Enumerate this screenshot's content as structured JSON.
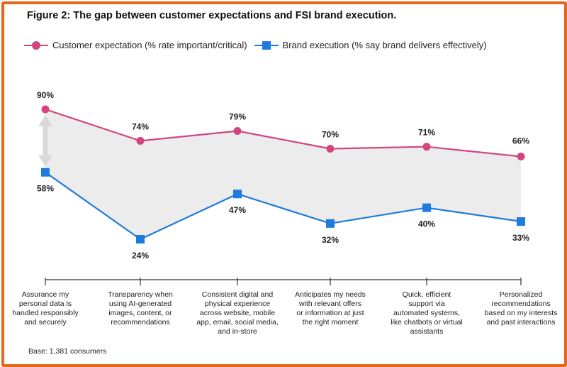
{
  "chart_data": {
    "type": "line",
    "title": "Figure 2: The gap between customer expectations and FSI brand execution.",
    "categories": [
      "Assurance my personal data is handled responsibly and securely",
      "Transparency when using AI-generated images, content, or recommendations",
      "Consistent digital and physical experience across website, mobile app, email, social media, and in-store",
      "Anticipates my needs with relevant offers or information at just the right moment",
      "Quick, efficient support via automated systems, like chatbots or virtual assistants",
      "Personalized recommendations based on my interests and past interactions"
    ],
    "category_lines": [
      [
        "Assurance my",
        "personal data is",
        "handled responsibly",
        "and securely"
      ],
      [
        "Transparency when",
        "using AI-generated",
        "images, content, or",
        "recommendations"
      ],
      [
        "Consistent digital and",
        "physical experience",
        "across website, mobile",
        "app, email, social media,",
        "and in-store"
      ],
      [
        "Anticipates my needs",
        "with relevant offers",
        "or information at just",
        "the right moment"
      ],
      [
        "Quick, efficient",
        "support via",
        "automated systems,",
        "like chatbots or virtual",
        "assistants"
      ],
      [
        "Personalized",
        "recommendations",
        "based on my interests",
        "and past interactions"
      ]
    ],
    "series": [
      {
        "name": "Customer expectation (% rate important/critical)",
        "marker": "circle",
        "color": "#d4457f",
        "values": [
          90,
          74,
          79,
          70,
          71,
          66
        ],
        "labels": [
          "90%",
          "74%",
          "79%",
          "70%",
          "71%",
          "66%"
        ]
      },
      {
        "name": "Brand execution (% say brand delivers effectively)",
        "marker": "square",
        "color": "#1e7bdb",
        "values": [
          58,
          24,
          47,
          32,
          40,
          33
        ],
        "labels": [
          "58%",
          "24%",
          "47%",
          "32%",
          "40%",
          "33%"
        ]
      }
    ],
    "ylim": [
      0,
      100
    ],
    "gap_fill_color": "#ececec",
    "gap_arrow_color": "#d9d9d9",
    "grid": false,
    "legend_position": "top-left"
  },
  "footnote": "Base: 1,381 consumers",
  "colors": {
    "frame": "#e3681c"
  }
}
